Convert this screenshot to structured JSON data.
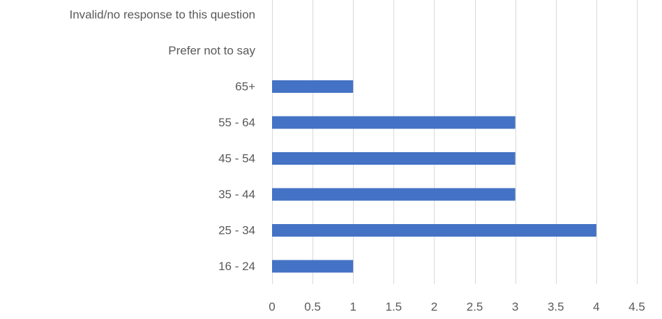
{
  "chart_data": {
    "type": "bar",
    "orientation": "horizontal",
    "categories": [
      "16 - 24",
      "25 - 34",
      "35 - 44",
      "45 - 54",
      "55 - 64",
      "65+",
      "Prefer not to say",
      "Invalid/no response to this question"
    ],
    "values": [
      1,
      4,
      3,
      3,
      3,
      1,
      0,
      0
    ],
    "xlim": [
      0,
      4.5
    ],
    "xticks": [
      "0",
      "0.5",
      "1",
      "1.5",
      "2",
      "2.5",
      "3",
      "3.5",
      "4",
      "4.5"
    ],
    "grid": "vertical",
    "title": "",
    "xlabel": "",
    "ylabel": "",
    "bar_color": "#4472C4",
    "grid_color": "#D9D9D9",
    "label_color": "#595959"
  }
}
